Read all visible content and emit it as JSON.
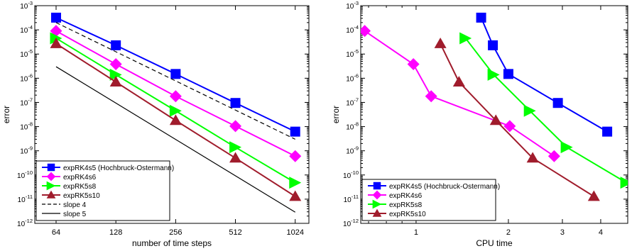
{
  "chart_data": [
    {
      "type": "line",
      "xscale": "log2",
      "yscale": "log10",
      "xlabel": "number of time steps",
      "ylabel": "error",
      "xlim": [
        50,
        1200
      ],
      "ylim_exp": [
        -12,
        -3
      ],
      "xticks": [
        64,
        128,
        256,
        512,
        1024
      ],
      "yticks": [
        -12,
        -11,
        -10,
        -9,
        -8,
        -7,
        -6,
        -5,
        -4,
        -3
      ],
      "legend_position": "bottom-left",
      "series": [
        {
          "name": "expRK4s5 (Hochbruck-Ostermann)",
          "color": "#0000ff",
          "marker": "square",
          "line": "solid",
          "x": [
            64,
            128,
            256,
            512,
            1024
          ],
          "y": [
            0.00032,
            2.3e-05,
            1.5e-06,
            9.5e-08,
            6.2e-09
          ]
        },
        {
          "name": "expRK4s6",
          "color": "#ff00ff",
          "marker": "diamond",
          "line": "solid",
          "x": [
            64,
            128,
            256,
            512,
            1024
          ],
          "y": [
            9e-05,
            3.8e-06,
            1.8e-07,
            1.05e-08,
            6e-10
          ]
        },
        {
          "name": "expRK5s8",
          "color": "#00ff00",
          "marker": "triangle-right",
          "line": "solid",
          "x": [
            64,
            128,
            256,
            512,
            1024
          ],
          "y": [
            4.5e-05,
            1.4e-06,
            4.5e-08,
            1.4e-09,
            4.8e-11
          ]
        },
        {
          "name": "expRK5s10",
          "color": "#a01c2c",
          "marker": "triangle-up",
          "line": "solid",
          "x": [
            64,
            128,
            256,
            512,
            1024
          ],
          "y": [
            2.7e-05,
            7e-07,
            1.8e-08,
            5e-10,
            1.3e-11
          ]
        },
        {
          "name": "slope 4",
          "color": "#000000",
          "marker": "none",
          "line": "dashed",
          "x": [
            64,
            1024
          ],
          "y": [
            0.0002,
            3e-09
          ]
        },
        {
          "name": "slope 5",
          "color": "#000000",
          "marker": "none",
          "line": "solid-thin",
          "x": [
            64,
            1024
          ],
          "y": [
            3e-06,
            2.9e-12
          ]
        }
      ]
    },
    {
      "type": "line",
      "xscale": "log10",
      "yscale": "log10",
      "xlabel": "CPU time",
      "ylabel": "error",
      "xlim": [
        0.66,
        4.9
      ],
      "ylim_exp": [
        -12,
        -3
      ],
      "xticks": [
        1,
        2,
        3,
        4
      ],
      "yticks": [
        -12,
        -11,
        -10,
        -9,
        -8,
        -7,
        -6,
        -5,
        -4,
        -3
      ],
      "legend_position": "bottom-left",
      "series": [
        {
          "name": "expRK4s5 (Hochbruck-Ostermann)",
          "color": "#0000ff",
          "marker": "square",
          "line": "solid",
          "x": [
            1.63,
            1.78,
            2.0,
            2.9,
            4.2
          ],
          "y": [
            0.00032,
            2.3e-05,
            1.5e-06,
            9.5e-08,
            6.2e-09
          ]
        },
        {
          "name": "expRK4s6",
          "color": "#ff00ff",
          "marker": "diamond",
          "line": "solid",
          "x": [
            0.68,
            0.98,
            1.12,
            2.02,
            2.82
          ],
          "y": [
            9e-05,
            3.8e-06,
            1.8e-07,
            1.05e-08,
            6e-10
          ]
        },
        {
          "name": "expRK5s8",
          "color": "#00ff00",
          "marker": "triangle-right",
          "line": "solid",
          "x": [
            1.45,
            1.79,
            2.35,
            3.1,
            4.85
          ],
          "y": [
            4.5e-05,
            1.4e-06,
            4.5e-08,
            1.4e-09,
            4.8e-11
          ]
        },
        {
          "name": "expRK5s10",
          "color": "#a01c2c",
          "marker": "triangle-up",
          "line": "solid",
          "x": [
            1.2,
            1.38,
            1.82,
            2.4,
            3.8
          ],
          "y": [
            2.7e-05,
            7e-07,
            1.8e-08,
            5e-10,
            1.3e-11
          ]
        }
      ]
    }
  ]
}
